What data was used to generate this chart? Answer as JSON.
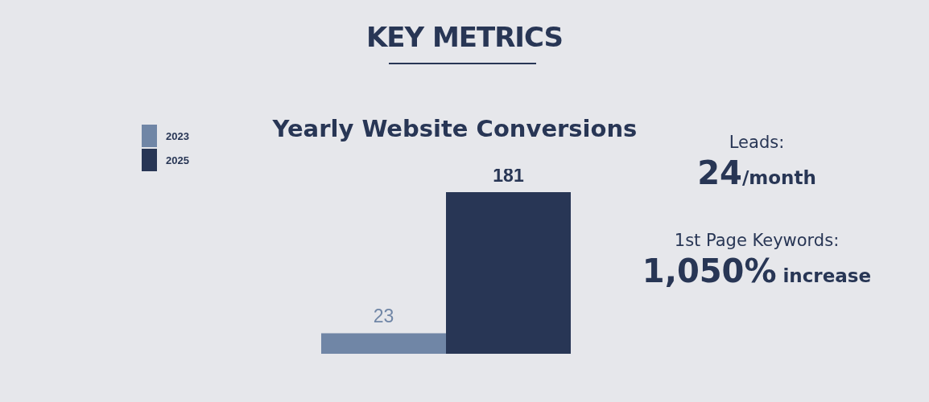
{
  "chart_data": [
    {
      "type": "other",
      "title": "KEY METRICS",
      "annotations": [
        "Leads:",
        "24/month",
        "1st Page Keywords:",
        "1,050% increase"
      ]
    },
    {
      "type": "bar",
      "title": "Yearly Website Conversions",
      "categories": [
        null
      ],
      "legend": "top left",
      "data_labels": true,
      "series": [
        {
          "name": "2023",
          "color": "#7086a6",
          "values": [
            23
          ]
        },
        {
          "name": "2025",
          "color": "#283655",
          "values": [
            181
          ]
        }
      ]
    }
  ]
}
